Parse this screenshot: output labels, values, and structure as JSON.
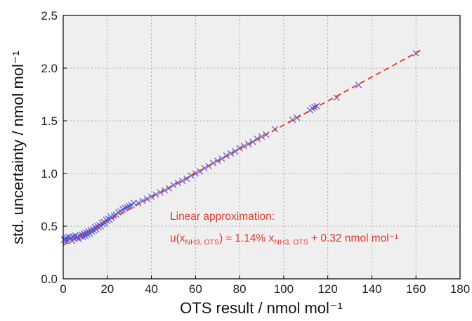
{
  "chart_data": {
    "type": "scatter",
    "xlabel": "OTS result / nmol mol⁻¹",
    "ylabel": "std. uncertainty / nmol mol⁻¹",
    "xlim": [
      0,
      180
    ],
    "ylim": [
      0.0,
      2.5
    ],
    "x_ticks": [
      0,
      20,
      40,
      60,
      80,
      100,
      120,
      140,
      160,
      180
    ],
    "y_ticks": [
      0.0,
      0.5,
      1.0,
      1.5,
      2.0,
      2.5
    ],
    "x_tick_labels": [
      "0",
      "20",
      "40",
      "60",
      "80",
      "100",
      "120",
      "140",
      "160",
      "180"
    ],
    "y_tick_labels": [
      "0.0",
      "0.5",
      "1.0",
      "1.5",
      "2.0",
      "2.5"
    ],
    "grid": true,
    "background": "#efefef",
    "series": [
      {
        "marker": "x",
        "color": "#5a5ad8",
        "points": [
          [
            0.3,
            0.37
          ],
          [
            0.8,
            0.38
          ],
          [
            1.2,
            0.36
          ],
          [
            1.6,
            0.39
          ],
          [
            2.0,
            0.37
          ],
          [
            2.5,
            0.4
          ],
          [
            3.0,
            0.38
          ],
          [
            3.5,
            0.39
          ],
          [
            4.0,
            0.36
          ],
          [
            4.5,
            0.4
          ],
          [
            5.0,
            0.38
          ],
          [
            5.5,
            0.41
          ],
          [
            6.0,
            0.39
          ],
          [
            6.5,
            0.4
          ],
          [
            7.0,
            0.38
          ],
          [
            7.5,
            0.41
          ],
          [
            8.0,
            0.4
          ],
          [
            8.5,
            0.42
          ],
          [
            9.0,
            0.4
          ],
          [
            9.5,
            0.43
          ],
          [
            10.0,
            0.41
          ],
          [
            10.5,
            0.44
          ],
          [
            11.0,
            0.42
          ],
          [
            11.5,
            0.45
          ],
          [
            12.0,
            0.43
          ],
          [
            12.5,
            0.46
          ],
          [
            13.0,
            0.45
          ],
          [
            13.5,
            0.47
          ],
          [
            14.0,
            0.46
          ],
          [
            14.5,
            0.49
          ],
          [
            15.0,
            0.47
          ],
          [
            15.5,
            0.5
          ],
          [
            16.0,
            0.49
          ],
          [
            16.5,
            0.51
          ],
          [
            17.0,
            0.5
          ],
          [
            17.5,
            0.53
          ],
          [
            18.0,
            0.52
          ],
          [
            18.5,
            0.54
          ],
          [
            19.0,
            0.53
          ],
          [
            19.5,
            0.56
          ],
          [
            20.0,
            0.55
          ],
          [
            20.5,
            0.57
          ],
          [
            21.0,
            0.56
          ],
          [
            21.5,
            0.59
          ],
          [
            22.0,
            0.58
          ],
          [
            23.0,
            0.6
          ],
          [
            24.0,
            0.61
          ],
          [
            25.0,
            0.63
          ],
          [
            26.0,
            0.64
          ],
          [
            27.0,
            0.66
          ],
          [
            28.0,
            0.67
          ],
          [
            29.0,
            0.68
          ],
          [
            30.0,
            0.69
          ],
          [
            31.0,
            0.7
          ],
          [
            32.0,
            0.72
          ],
          [
            34.0,
            0.72
          ],
          [
            36.0,
            0.74
          ],
          [
            38.0,
            0.76
          ],
          [
            40.0,
            0.78
          ],
          [
            42.0,
            0.8
          ],
          [
            44.0,
            0.82
          ],
          [
            46.0,
            0.84
          ],
          [
            48.0,
            0.86
          ],
          [
            50.0,
            0.89
          ],
          [
            52.0,
            0.91
          ],
          [
            54.0,
            0.93
          ],
          [
            56.0,
            0.95
          ],
          [
            58.0,
            0.98
          ],
          [
            60.0,
            1.0
          ],
          [
            62.0,
            1.02
          ],
          [
            64.0,
            1.05
          ],
          [
            66.0,
            1.07
          ],
          [
            68.0,
            1.1
          ],
          [
            70.0,
            1.12
          ],
          [
            72.0,
            1.14
          ],
          [
            74.0,
            1.17
          ],
          [
            76.0,
            1.19
          ],
          [
            78.0,
            1.21
          ],
          [
            80.0,
            1.24
          ],
          [
            82.0,
            1.26
          ],
          [
            84.0,
            1.28
          ],
          [
            86.0,
            1.3
          ],
          [
            88.0,
            1.33
          ],
          [
            90.0,
            1.35
          ],
          [
            92.0,
            1.37
          ],
          [
            96.0,
            1.42
          ],
          [
            104.0,
            1.51
          ],
          [
            106.0,
            1.53
          ],
          [
            112.0,
            1.6
          ],
          [
            113.0,
            1.62
          ],
          [
            114.0,
            1.63
          ],
          [
            115.0,
            1.64
          ],
          [
            124.0,
            1.72
          ],
          [
            134.0,
            1.84
          ],
          [
            160.0,
            2.14
          ]
        ]
      }
    ],
    "fit_line": {
      "style": "dashed",
      "color": "#e03a2e",
      "x": [
        0,
        162
      ],
      "y": [
        0.32,
        2.167
      ]
    },
    "annotation": {
      "line1": "Linear approximation:",
      "line2_parts": [
        "u(x",
        "NH3, OTS",
        ") ≈ 1.14% x",
        "NH3, OTS",
        " + 0.32 nmol mol⁻¹"
      ],
      "color": "#e03a2e"
    }
  }
}
